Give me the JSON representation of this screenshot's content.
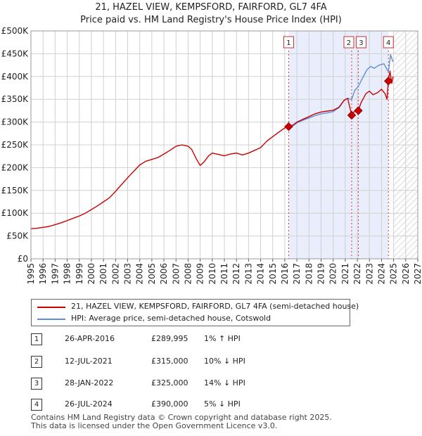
{
  "title": {
    "line1": "21, HAZEL VIEW, KEMPSFORD, FAIRFORD, GL7 4FA",
    "line2": "Price paid vs. HM Land Registry's House Price Index (HPI)"
  },
  "colors": {
    "property": "#cc0000",
    "hpi": "#5b8fd6",
    "shade": "#e8eefb",
    "grid": "#d0d0d0",
    "marker_line": "#dd3333"
  },
  "chart_data": {
    "type": "line",
    "x_range": [
      1995,
      2027
    ],
    "y_range": [
      0,
      500000
    ],
    "y_ticks": [
      {
        "value": 0,
        "label": "£0"
      },
      {
        "value": 50000,
        "label": "£50K"
      },
      {
        "value": 100000,
        "label": "£100K"
      },
      {
        "value": 150000,
        "label": "£150K"
      },
      {
        "value": 200000,
        "label": "£200K"
      },
      {
        "value": 250000,
        "label": "£250K"
      },
      {
        "value": 300000,
        "label": "£300K"
      },
      {
        "value": 350000,
        "label": "£350K"
      },
      {
        "value": 400000,
        "label": "£400K"
      },
      {
        "value": 450000,
        "label": "£450K"
      },
      {
        "value": 500000,
        "label": "£500K"
      }
    ],
    "x_ticks": [
      "1995",
      "1996",
      "1997",
      "1998",
      "1999",
      "2000",
      "2001",
      "2002",
      "2003",
      "2004",
      "2005",
      "2006",
      "2007",
      "2008",
      "2009",
      "2010",
      "2011",
      "2012",
      "2013",
      "2014",
      "2015",
      "2016",
      "2017",
      "2018",
      "2019",
      "2020",
      "2021",
      "2022",
      "2023",
      "2024",
      "2025",
      "2026",
      "2027"
    ],
    "shaded_period": [
      2016.32,
      2024.57
    ],
    "hatched_from": 2025.0,
    "series": [
      {
        "name": "21, HAZEL VIEW, KEMPSFORD, FAIRFORD, GL7 4FA (semi-detached house)",
        "points": [
          [
            1995.0,
            66000
          ],
          [
            1995.5,
            67000
          ],
          [
            1996.0,
            69000
          ],
          [
            1996.5,
            71000
          ],
          [
            1997.0,
            75000
          ],
          [
            1997.5,
            79000
          ],
          [
            1998.0,
            84000
          ],
          [
            1998.5,
            89000
          ],
          [
            1999.0,
            94000
          ],
          [
            1999.5,
            100000
          ],
          [
            2000.0,
            108000
          ],
          [
            2000.5,
            116000
          ],
          [
            2001.0,
            125000
          ],
          [
            2001.5,
            134000
          ],
          [
            2002.0,
            148000
          ],
          [
            2002.5,
            163000
          ],
          [
            2003.0,
            178000
          ],
          [
            2003.5,
            192000
          ],
          [
            2004.0,
            206000
          ],
          [
            2004.5,
            214000
          ],
          [
            2005.0,
            218000
          ],
          [
            2005.5,
            222000
          ],
          [
            2006.0,
            230000
          ],
          [
            2006.5,
            238000
          ],
          [
            2007.0,
            247000
          ],
          [
            2007.5,
            250000
          ],
          [
            2008.0,
            247000
          ],
          [
            2008.3,
            240000
          ],
          [
            2008.7,
            218000
          ],
          [
            2009.0,
            205000
          ],
          [
            2009.3,
            212000
          ],
          [
            2009.7,
            226000
          ],
          [
            2010.0,
            232000
          ],
          [
            2010.5,
            229000
          ],
          [
            2011.0,
            226000
          ],
          [
            2011.5,
            230000
          ],
          [
            2012.0,
            232000
          ],
          [
            2012.5,
            228000
          ],
          [
            2013.0,
            232000
          ],
          [
            2013.5,
            238000
          ],
          [
            2014.0,
            244000
          ],
          [
            2014.5,
            258000
          ],
          [
            2015.0,
            268000
          ],
          [
            2015.5,
            278000
          ],
          [
            2016.0,
            287000
          ],
          [
            2016.32,
            289995
          ],
          [
            2016.7,
            294000
          ],
          [
            2017.0,
            300000
          ],
          [
            2017.5,
            306000
          ],
          [
            2018.0,
            312000
          ],
          [
            2018.5,
            318000
          ],
          [
            2019.0,
            322000
          ],
          [
            2019.5,
            324000
          ],
          [
            2020.0,
            326000
          ],
          [
            2020.5,
            333000
          ],
          [
            2020.9,
            348000
          ],
          [
            2021.2,
            352000
          ],
          [
            2021.53,
            315000
          ],
          [
            2021.7,
            322000
          ],
          [
            2022.08,
            325000
          ],
          [
            2022.3,
            342000
          ],
          [
            2022.7,
            362000
          ],
          [
            2023.0,
            368000
          ],
          [
            2023.3,
            360000
          ],
          [
            2023.7,
            365000
          ],
          [
            2024.0,
            372000
          ],
          [
            2024.3,
            362000
          ],
          [
            2024.45,
            350000
          ],
          [
            2024.57,
            390000
          ],
          [
            2024.7,
            412000
          ],
          [
            2024.85,
            385000
          ],
          [
            2024.95,
            400000
          ]
        ]
      },
      {
        "name": "HPI: Average price, semi-detached house, Cotswold",
        "points": [
          [
            2016.32,
            287000
          ],
          [
            2016.7,
            292000
          ],
          [
            2017.0,
            298000
          ],
          [
            2017.5,
            304000
          ],
          [
            2018.0,
            309000
          ],
          [
            2018.5,
            314000
          ],
          [
            2019.0,
            318000
          ],
          [
            2019.5,
            320000
          ],
          [
            2020.0,
            323000
          ],
          [
            2020.5,
            332000
          ],
          [
            2020.9,
            347000
          ],
          [
            2021.2,
            352000
          ],
          [
            2021.53,
            350000
          ],
          [
            2021.8,
            370000
          ],
          [
            2022.08,
            378000
          ],
          [
            2022.4,
            395000
          ],
          [
            2022.8,
            415000
          ],
          [
            2023.1,
            422000
          ],
          [
            2023.4,
            418000
          ],
          [
            2023.8,
            425000
          ],
          [
            2024.2,
            428000
          ],
          [
            2024.57,
            410000
          ],
          [
            2024.75,
            448000
          ],
          [
            2024.85,
            440000
          ],
          [
            2024.95,
            432000
          ]
        ]
      }
    ],
    "sales": [
      {
        "id": "1",
        "x": 2016.32,
        "price": 289995
      },
      {
        "id": "2",
        "x": 2021.53,
        "price": 315000
      },
      {
        "id": "3",
        "x": 2022.08,
        "price": 325000
      },
      {
        "id": "4",
        "x": 2024.57,
        "price": 390000
      }
    ]
  },
  "legend": {
    "property": "21, HAZEL VIEW, KEMPSFORD, FAIRFORD, GL7 4FA (semi-detached house)",
    "hpi": "HPI: Average price, semi-detached house, Cotswold"
  },
  "transactions": [
    {
      "num": "1",
      "date": "26-APR-2016",
      "price": "£289,995",
      "pct": "1% ↑ HPI"
    },
    {
      "num": "2",
      "date": "12-JUL-2021",
      "price": "£315,000",
      "pct": "10% ↓ HPI"
    },
    {
      "num": "3",
      "date": "28-JAN-2022",
      "price": "£325,000",
      "pct": "14% ↓ HPI"
    },
    {
      "num": "4",
      "date": "26-JUL-2024",
      "price": "£390,000",
      "pct": "5% ↓ HPI"
    }
  ],
  "footer": {
    "line1": "Contains HM Land Registry data © Crown copyright and database right 2025.",
    "line2": "This data is licensed under the Open Government Licence v3.0."
  }
}
